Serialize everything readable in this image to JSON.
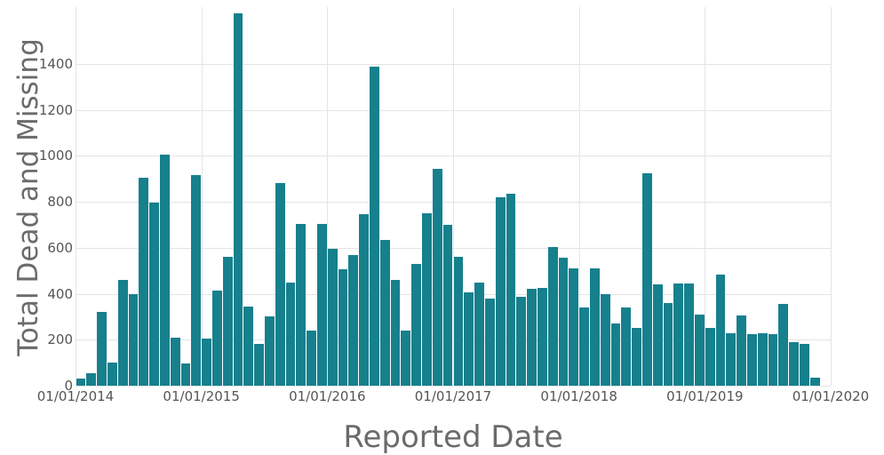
{
  "chart": {
    "y_axis_title": "Total Dead and Missing",
    "x_axis_title": "Reported Date",
    "colors": {
      "bar": "#16808d",
      "grid": "#e4e4e4",
      "axis_text": "#6b6b6b",
      "tick_text": "#555555",
      "background": "#ffffff"
    }
  },
  "chart_data": {
    "type": "bar",
    "title": "",
    "xlabel": "Reported Date",
    "ylabel": "Total Dead and Missing",
    "x_tick_labels": [
      "01/01/2014",
      "01/01/2015",
      "01/01/2016",
      "01/01/2017",
      "01/01/2018",
      "01/01/2019",
      "01/01/2020"
    ],
    "y_ticks": [
      0,
      200,
      400,
      600,
      800,
      1000,
      1200,
      1400
    ],
    "ylim": [
      0,
      1650
    ],
    "grid": true,
    "legend": "none",
    "x_unit": "month",
    "months": [
      "2014-01",
      "2014-02",
      "2014-03",
      "2014-04",
      "2014-05",
      "2014-06",
      "2014-07",
      "2014-08",
      "2014-09",
      "2014-10",
      "2014-11",
      "2014-12",
      "2015-01",
      "2015-02",
      "2015-03",
      "2015-04",
      "2015-05",
      "2015-06",
      "2015-07",
      "2015-08",
      "2015-09",
      "2015-10",
      "2015-11",
      "2015-12",
      "2016-01",
      "2016-02",
      "2016-03",
      "2016-04",
      "2016-05",
      "2016-06",
      "2016-07",
      "2016-08",
      "2016-09",
      "2016-10",
      "2016-11",
      "2016-12",
      "2017-01",
      "2017-02",
      "2017-03",
      "2017-04",
      "2017-05",
      "2017-06",
      "2017-07",
      "2017-08",
      "2017-09",
      "2017-10",
      "2017-11",
      "2017-12",
      "2018-01",
      "2018-02",
      "2018-03",
      "2018-04",
      "2018-05",
      "2018-06",
      "2018-07",
      "2018-08",
      "2018-09",
      "2018-10",
      "2018-11",
      "2018-12",
      "2019-01",
      "2019-02",
      "2019-03",
      "2019-04",
      "2019-05",
      "2019-06",
      "2019-07",
      "2019-08",
      "2019-09",
      "2019-10",
      "2019-11"
    ],
    "values": [
      30,
      55,
      320,
      100,
      460,
      400,
      905,
      795,
      1005,
      210,
      95,
      915,
      205,
      415,
      560,
      1620,
      345,
      180,
      300,
      880,
      450,
      705,
      240,
      705,
      595,
      505,
      570,
      745,
      1390,
      635,
      460,
      240,
      530,
      750,
      945,
      700,
      560,
      405,
      450,
      380,
      820,
      835,
      385,
      420,
      425,
      605,
      555,
      510,
      340,
      510,
      400,
      270,
      340,
      250,
      925,
      440,
      360,
      445,
      445,
      310,
      250,
      485,
      230,
      305,
      225,
      230,
      225,
      355,
      190,
      180,
      35
    ]
  }
}
